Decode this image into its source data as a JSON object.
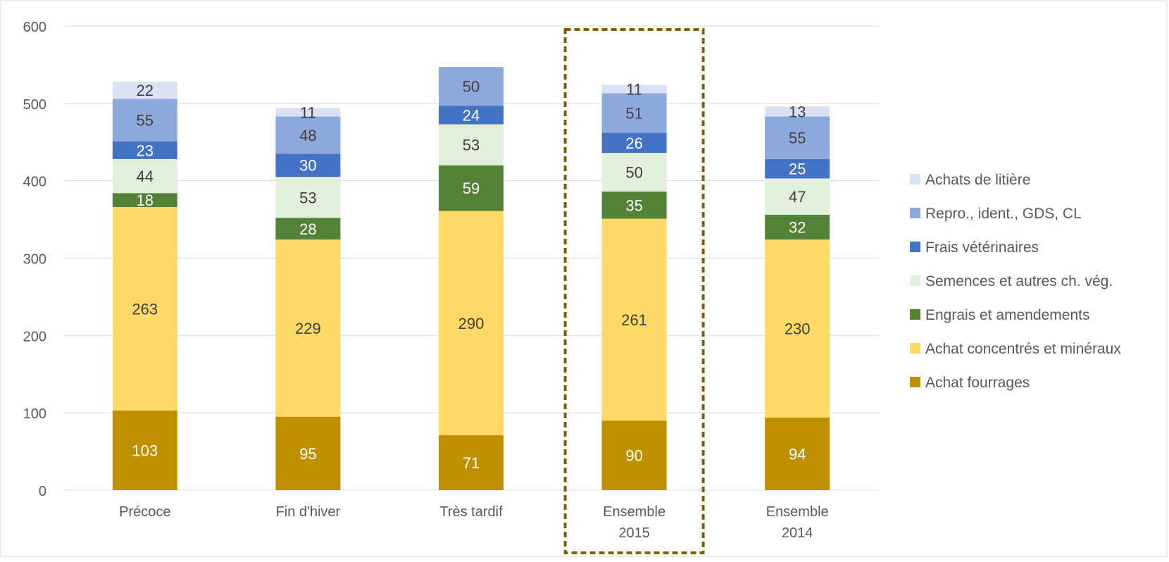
{
  "chart_data": {
    "type": "bar",
    "stacked": true,
    "title": "",
    "xlabel": "",
    "ylabel": "",
    "ylim": [
      0,
      600
    ],
    "yticks": [
      0,
      100,
      200,
      300,
      400,
      500,
      600
    ],
    "grid": true,
    "legend_position": "right",
    "highlighted_category": "Ensemble 2015",
    "categories": [
      [
        "Précoce"
      ],
      [
        "Fin d'hiver"
      ],
      [
        "Très tardif"
      ],
      [
        "Ensemble",
        "2015"
      ],
      [
        "Ensemble",
        "2014"
      ]
    ],
    "series": [
      {
        "name": "Achat fourrages",
        "color": "#BF9000",
        "label_color": "#ffffff",
        "values": [
          103,
          95,
          71,
          90,
          94
        ]
      },
      {
        "name": "Achat concentrés et minéraux",
        "color": "#FFD966",
        "label_color": "#404040",
        "values": [
          263,
          229,
          290,
          261,
          230
        ]
      },
      {
        "name": "Engrais et amendements",
        "color": "#538135",
        "label_color": "#ffffff",
        "values": [
          18,
          28,
          59,
          35,
          32
        ]
      },
      {
        "name": "Semences et autres ch. vég.",
        "color": "#E2EFDA",
        "label_color": "#404040",
        "values": [
          44,
          53,
          53,
          50,
          47
        ]
      },
      {
        "name": "Frais vétérinaires",
        "color": "#4472C4",
        "label_color": "#ffffff",
        "values": [
          23,
          30,
          24,
          26,
          25
        ]
      },
      {
        "name": "Repro., ident., GDS, CL",
        "color": "#8EA9DB",
        "label_color": "#404040",
        "values": [
          55,
          48,
          50,
          51,
          55
        ]
      },
      {
        "name": "Achats de litière",
        "color": "#D9E1F2",
        "label_color": "#404040",
        "values": [
          22,
          11,
          null,
          11,
          13
        ]
      }
    ]
  }
}
